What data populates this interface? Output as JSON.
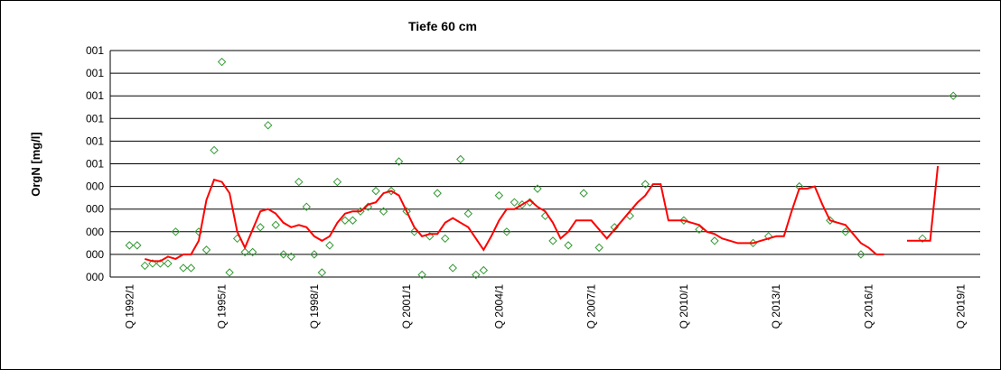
{
  "chart_data": {
    "type": "line",
    "title": "Tiefe  60 cm",
    "y_label": "OrgN [mg/l]",
    "grid": true,
    "ylim": [
      0,
      1
    ],
    "yticks": [
      {
        "value": 0,
        "label": "000"
      },
      {
        "value": 0.1,
        "label": "000"
      },
      {
        "value": 0.2,
        "label": "000"
      },
      {
        "value": 0.3,
        "label": "000"
      },
      {
        "value": 0.4,
        "label": "000"
      },
      {
        "value": 0.5,
        "label": "001"
      },
      {
        "value": 0.6,
        "label": "001"
      },
      {
        "value": 0.7,
        "label": "001"
      },
      {
        "value": 0.8,
        "label": "001"
      },
      {
        "value": 0.9,
        "label": "001"
      },
      {
        "value": 1,
        "label": "001"
      }
    ],
    "categories": [
      null,
      null,
      "Q 1992/1",
      null,
      null,
      null,
      null,
      null,
      null,
      null,
      null,
      null,
      null,
      null,
      "Q 1995/1",
      null,
      null,
      null,
      null,
      null,
      null,
      null,
      null,
      null,
      null,
      null,
      "Q 1998/1",
      null,
      null,
      null,
      null,
      null,
      null,
      null,
      null,
      null,
      null,
      null,
      "Q 2001/1",
      null,
      null,
      null,
      null,
      null,
      null,
      null,
      null,
      null,
      null,
      null,
      "Q 2004/1",
      null,
      null,
      null,
      null,
      null,
      null,
      null,
      null,
      null,
      null,
      null,
      "Q 2007/1",
      null,
      null,
      null,
      null,
      null,
      null,
      null,
      null,
      null,
      null,
      null,
      "Q 2010/1",
      null,
      null,
      null,
      null,
      null,
      null,
      null,
      null,
      null,
      null,
      null,
      "Q 2013/1",
      null,
      null,
      null,
      null,
      null,
      null,
      null,
      null,
      null,
      null,
      null,
      "Q 2016/1",
      null,
      null,
      null,
      null,
      null,
      null,
      null,
      null,
      null,
      null,
      null,
      "Q 2019/1",
      null,
      null
    ],
    "series": [
      {
        "style": "markers",
        "color": "#339933",
        "values": [
          null,
          null,
          0.14,
          0.14,
          0.05,
          0.06,
          0.06,
          0.06,
          0.2,
          0.04,
          0.04,
          0.2,
          0.12,
          0.56,
          0.95,
          0.02,
          0.17,
          0.11,
          0.11,
          0.22,
          0.67,
          0.23,
          0.1,
          0.09,
          0.42,
          0.31,
          0.1,
          0.02,
          0.14,
          0.42,
          0.25,
          0.25,
          0.29,
          0.31,
          0.38,
          0.29,
          0.38,
          0.51,
          0.29,
          0.2,
          0.01,
          0.18,
          0.37,
          0.17,
          0.04,
          0.52,
          0.28,
          0.01,
          0.03,
          null,
          0.36,
          0.2,
          0.33,
          0.32,
          0.33,
          0.39,
          0.27,
          0.16,
          null,
          0.14,
          null,
          0.37,
          null,
          0.13,
          null,
          0.22,
          null,
          0.27,
          null,
          0.41,
          null,
          null,
          null,
          null,
          0.25,
          null,
          0.21,
          null,
          0.16,
          null,
          null,
          null,
          null,
          0.15,
          null,
          0.18,
          null,
          null,
          null,
          0.4,
          null,
          null,
          null,
          0.25,
          null,
          0.2,
          null,
          0.1,
          null,
          null,
          null,
          null,
          null,
          null,
          null,
          0.17,
          null,
          null,
          null,
          0.8,
          null,
          null,
          null
        ]
      },
      {
        "style": "line",
        "color": "#ff0000",
        "values": [
          null,
          null,
          null,
          null,
          0.08,
          0.07,
          0.07,
          0.09,
          0.08,
          0.1,
          0.1,
          0.16,
          0.34,
          0.43,
          0.42,
          0.37,
          0.2,
          0.13,
          0.21,
          0.29,
          0.3,
          0.28,
          0.24,
          0.22,
          0.23,
          0.22,
          0.18,
          0.16,
          0.18,
          0.24,
          0.28,
          0.29,
          0.29,
          0.32,
          0.33,
          0.37,
          0.38,
          0.36,
          0.29,
          0.22,
          0.18,
          0.19,
          0.19,
          0.24,
          0.26,
          0.24,
          0.22,
          0.17,
          0.12,
          0.18,
          0.25,
          0.3,
          0.3,
          0.32,
          0.34,
          0.31,
          0.29,
          0.24,
          0.17,
          0.2,
          0.25,
          0.25,
          0.25,
          0.21,
          0.17,
          0.21,
          0.25,
          0.29,
          0.33,
          0.36,
          0.41,
          0.41,
          0.25,
          0.25,
          0.25,
          0.24,
          0.23,
          0.2,
          0.19,
          0.17,
          0.16,
          0.15,
          0.15,
          0.15,
          0.16,
          0.17,
          0.18,
          0.18,
          0.29,
          0.39,
          0.39,
          0.4,
          0.32,
          0.25,
          0.24,
          0.23,
          0.19,
          0.15,
          0.13,
          0.1,
          0.1,
          null,
          null,
          0.16,
          0.16,
          0.16,
          0.16,
          0.49,
          null,
          null,
          null,
          null,
          null
        ]
      }
    ]
  }
}
